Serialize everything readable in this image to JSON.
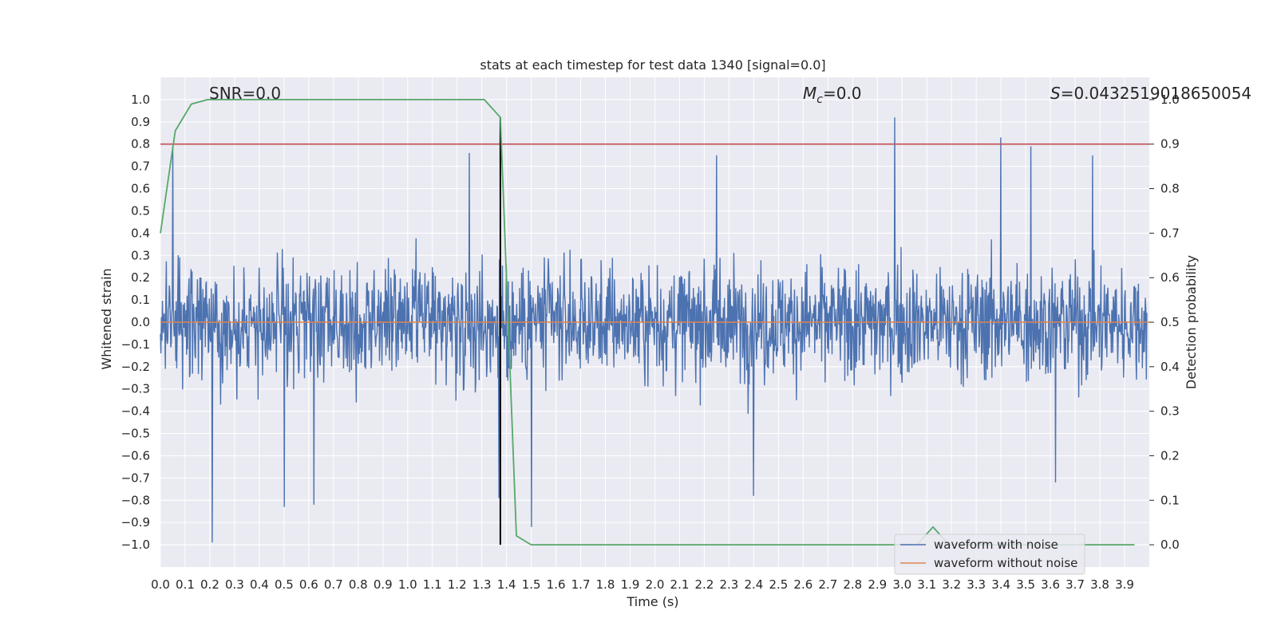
{
  "chart_data": {
    "type": "line",
    "title": "stats at each timestep for test data 1340 [signal=0.0]",
    "xlabel": "Time (s)",
    "ylabel": "Whitened strain",
    "y2label": "Detection probability",
    "xlim": [
      0.0,
      4.0
    ],
    "ylim": [
      -1.1,
      1.1
    ],
    "y2lim": [
      -0.05,
      1.05
    ],
    "x_ticks": [
      "0.0",
      "0.1",
      "0.2",
      "0.3",
      "0.4",
      "0.5",
      "0.6",
      "0.7",
      "0.8",
      "0.9",
      "1.0",
      "1.1",
      "1.2",
      "1.3",
      "1.4",
      "1.5",
      "1.6",
      "1.7",
      "1.8",
      "1.9",
      "2.0",
      "2.1",
      "2.2",
      "2.3",
      "2.4",
      "2.5",
      "2.6",
      "2.7",
      "2.8",
      "2.9",
      "3.0",
      "3.1",
      "3.2",
      "3.3",
      "3.4",
      "3.5",
      "3.6",
      "3.7",
      "3.8",
      "3.9"
    ],
    "y_ticks": [
      "1.0",
      "0.9",
      "0.8",
      "0.7",
      "0.6",
      "0.5",
      "0.4",
      "0.3",
      "0.2",
      "0.1",
      "0.0",
      "−0.1",
      "−0.2",
      "−0.3",
      "−0.4",
      "−0.5",
      "−0.6",
      "−0.7",
      "−0.8",
      "−0.9",
      "−1.0"
    ],
    "y2_ticks": [
      "1.0",
      "0.9",
      "0.8",
      "0.7",
      "0.6",
      "0.5",
      "0.4",
      "0.3",
      "0.2",
      "0.1",
      "0.0"
    ],
    "grid": true,
    "legend_position": "lower-right",
    "annotations": {
      "snr": "SNR=0.0",
      "mc_symbol": "M",
      "mc_sub": "c",
      "mc_value": "=0.0",
      "s_symbol": "S",
      "s_value": "=0.0432519018650054"
    },
    "series": [
      {
        "name": "waveform with noise",
        "color": "#4c72b0",
        "axis": "left",
        "description_points": {
          "x_range": [
            0.0,
            3.99
          ],
          "typical_amplitude": 0.3
        },
        "peaks": [
          [
            0.05,
            0.79
          ],
          [
            0.21,
            -0.99
          ],
          [
            0.5,
            -0.83
          ],
          [
            0.62,
            -0.82
          ],
          [
            1.25,
            0.76
          ],
          [
            1.37,
            -0.79
          ],
          [
            1.5,
            -0.92
          ],
          [
            2.25,
            0.75
          ],
          [
            2.4,
            -0.78
          ],
          [
            2.97,
            0.92
          ],
          [
            3.4,
            0.83
          ],
          [
            3.52,
            0.79
          ],
          [
            3.62,
            -0.72
          ],
          [
            3.77,
            0.75
          ]
        ]
      },
      {
        "name": "waveform without noise",
        "color": "#dd8452",
        "axis": "left",
        "x": [
          0.0,
          4.0
        ],
        "y": [
          0.0,
          0.0
        ]
      },
      {
        "name": "",
        "color": "#55a868",
        "axis": "right",
        "x": [
          0.0,
          0.06,
          0.125,
          0.19,
          0.25,
          0.31,
          0.375,
          0.44,
          0.5,
          0.56,
          0.625,
          0.69,
          0.75,
          0.81,
          0.875,
          0.94,
          1.0,
          1.06,
          1.125,
          1.19,
          1.25,
          1.31,
          1.375,
          1.44,
          1.5,
          1.56,
          1.625,
          1.69,
          1.75,
          1.81,
          1.875,
          1.94,
          2.0,
          2.06,
          2.125,
          2.19,
          2.25,
          2.31,
          2.375,
          2.44,
          2.5,
          2.56,
          2.625,
          2.69,
          2.75,
          2.81,
          2.875,
          2.94,
          3.0,
          3.06,
          3.125,
          3.19,
          3.25,
          3.31,
          3.375,
          3.44,
          3.5,
          3.56,
          3.625,
          3.69,
          3.75,
          3.81,
          3.875,
          3.94
        ],
        "y": [
          0.7,
          0.93,
          0.99,
          1.0,
          1.0,
          1.0,
          1.0,
          1.0,
          1.0,
          1.0,
          1.0,
          1.0,
          1.0,
          1.0,
          1.0,
          1.0,
          1.0,
          1.0,
          1.0,
          1.0,
          1.0,
          1.0,
          0.96,
          0.02,
          0.0,
          0.0,
          0.0,
          0.0,
          0.0,
          0.0,
          0.0,
          0.0,
          0.0,
          0.0,
          0.0,
          0.0,
          0.0,
          0.0,
          0.0,
          0.0,
          0.0,
          0.0,
          0.0,
          0.0,
          0.0,
          0.0,
          0.0,
          0.0,
          0.0,
          0.0,
          0.04,
          0.0,
          0.0,
          0.0,
          0.0,
          0.0,
          0.0,
          0.0,
          0.0,
          0.0,
          0.0,
          0.0,
          0.0,
          0.0
        ]
      }
    ],
    "threshold": {
      "color": "#c44e52",
      "axis": "right",
      "value": 0.9
    },
    "vertical_marker": {
      "color": "#000000",
      "x": 1.375,
      "y_range": [
        -1.0,
        0.92
      ]
    }
  }
}
